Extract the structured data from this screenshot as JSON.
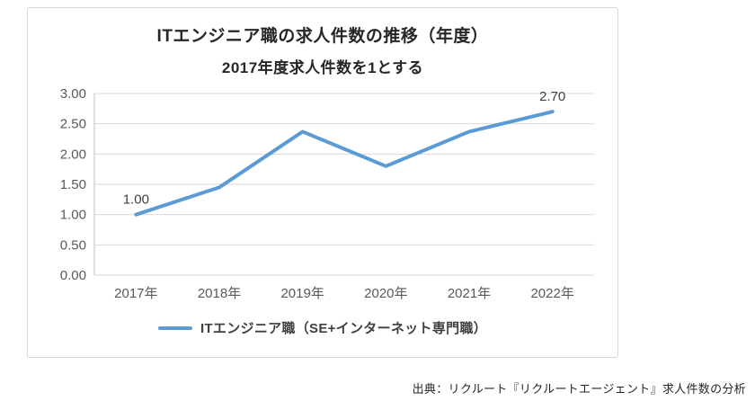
{
  "card": {
    "title": "ITエンジニア職の求人件数の推移（年度）",
    "subtitle": "2017年度求人件数を1とする"
  },
  "legend": {
    "label": "ITエンジニア職（SE+インターネット専門職）"
  },
  "source": "出典：リクルート『リクルートエージェント』求人件数の分析",
  "colors": {
    "line": "#5B9BD5",
    "grid": "#D9D9D9",
    "axis": "#BFBFBF",
    "tick_text": "#595959",
    "label_text": "#404040"
  },
  "chart_data": {
    "type": "line",
    "title": "ITエンジニア職の求人件数の推移（年度）",
    "subtitle": "2017年度求人件数を1とする",
    "categories": [
      "2017年",
      "2018年",
      "2019年",
      "2020年",
      "2021年",
      "2022年"
    ],
    "series": [
      {
        "name": "ITエンジニア職（SE+インターネット専門職）",
        "values": [
          1.0,
          1.45,
          2.37,
          1.8,
          2.37,
          2.7
        ]
      }
    ],
    "ylim": [
      0,
      3.0
    ],
    "ytick_step": 0.5,
    "ytick_labels": [
      "0.00",
      "0.50",
      "1.00",
      "1.50",
      "2.00",
      "2.50",
      "3.00"
    ],
    "grid": true,
    "legend_position": "bottom",
    "annotations": [
      {
        "index": 0,
        "text": "1.00"
      },
      {
        "index": 5,
        "text": "2.70"
      }
    ]
  }
}
